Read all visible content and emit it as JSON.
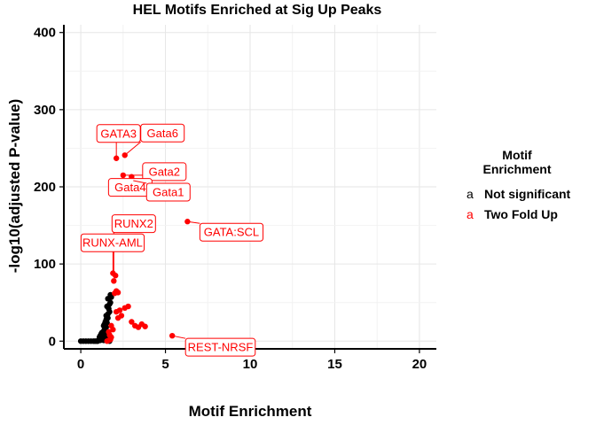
{
  "chart_data": {
    "type": "scatter",
    "title": "HEL Motifs Enriched at Sig Up Peaks",
    "xlabel": "Motif Enrichment",
    "ylabel": "-log10(adjusted P-value)",
    "xlim": [
      -1,
      21
    ],
    "ylim": [
      -10,
      410
    ],
    "xticks": [
      0,
      5,
      10,
      15,
      20
    ],
    "yticks": [
      0,
      100,
      200,
      300,
      400
    ],
    "grid": true,
    "legend": {
      "title": "Motif\nEnrichment",
      "placement": "right",
      "entries": [
        {
          "key": "a",
          "label": "Not significant",
          "color": "#000000"
        },
        {
          "key": "a",
          "label": "Two Fold Up",
          "color": "#ff0000"
        }
      ]
    },
    "series": [
      {
        "name": "Not significant",
        "color": "#000000",
        "points": [
          [
            0.0,
            0
          ],
          [
            0.15,
            0
          ],
          [
            0.3,
            0
          ],
          [
            0.45,
            0
          ],
          [
            0.6,
            0
          ],
          [
            0.75,
            0
          ],
          [
            0.85,
            0
          ],
          [
            0.95,
            0
          ],
          [
            1.0,
            0
          ],
          [
            1.05,
            1
          ],
          [
            1.1,
            2
          ],
          [
            1.15,
            1
          ],
          [
            1.2,
            3
          ],
          [
            1.25,
            2
          ],
          [
            1.3,
            4
          ],
          [
            1.35,
            1
          ],
          [
            1.4,
            3
          ],
          [
            1.45,
            5
          ],
          [
            1.5,
            2
          ],
          [
            1.55,
            4
          ],
          [
            1.6,
            1
          ],
          [
            1.65,
            3
          ],
          [
            1.7,
            0
          ],
          [
            1.1,
            5
          ],
          [
            1.15,
            7
          ],
          [
            1.2,
            9
          ],
          [
            1.25,
            11
          ],
          [
            1.3,
            8
          ],
          [
            1.35,
            13
          ],
          [
            1.4,
            15
          ],
          [
            1.45,
            10
          ],
          [
            1.5,
            18
          ],
          [
            1.55,
            12
          ],
          [
            1.35,
            20
          ],
          [
            1.4,
            22
          ],
          [
            1.45,
            25
          ],
          [
            1.5,
            28
          ],
          [
            1.55,
            24
          ],
          [
            1.6,
            30
          ],
          [
            1.5,
            33
          ],
          [
            1.6,
            35
          ],
          [
            1.7,
            38
          ],
          [
            1.65,
            42
          ],
          [
            1.55,
            45
          ],
          [
            1.7,
            48
          ],
          [
            1.75,
            50
          ],
          [
            1.6,
            55
          ],
          [
            1.8,
            57
          ],
          [
            1.75,
            60
          ]
        ]
      },
      {
        "name": "Two Fold Up",
        "color": "#ff0000",
        "points": [
          [
            1.55,
            0
          ],
          [
            1.65,
            1
          ],
          [
            1.75,
            2
          ],
          [
            1.8,
            5
          ],
          [
            1.7,
            8
          ],
          [
            1.65,
            12
          ],
          [
            1.9,
            15
          ],
          [
            1.8,
            20
          ],
          [
            2.2,
            30
          ],
          [
            2.4,
            33
          ],
          [
            2.1,
            38
          ],
          [
            2.3,
            40
          ],
          [
            2.6,
            43
          ],
          [
            2.8,
            45
          ],
          [
            3.0,
            25
          ],
          [
            3.2,
            20
          ],
          [
            3.4,
            18
          ],
          [
            3.6,
            22
          ],
          [
            3.8,
            19
          ],
          [
            2.0,
            62
          ],
          [
            2.1,
            65
          ],
          [
            2.2,
            63
          ],
          [
            1.95,
            78
          ],
          [
            2.05,
            85
          ],
          [
            1.9,
            88
          ],
          [
            5.4,
            7
          ],
          [
            6.3,
            155
          ],
          [
            2.1,
            237
          ],
          [
            2.6,
            241
          ],
          [
            2.5,
            215
          ],
          [
            3.0,
            213
          ],
          [
            3.1,
            208
          ]
        ]
      }
    ],
    "annotations": [
      {
        "label": "Gata6",
        "x": 2.6,
        "y": 241
      },
      {
        "label": "GATA3",
        "x": 2.1,
        "y": 237
      },
      {
        "label": "Gata2",
        "x": 2.5,
        "y": 215
      },
      {
        "label": "Gata4",
        "x": 3.0,
        "y": 213
      },
      {
        "label": "Gata1",
        "x": 3.1,
        "y": 208
      },
      {
        "label": "GATA:SCL",
        "x": 6.3,
        "y": 155
      },
      {
        "label": "RUNX2",
        "x": 1.95,
        "y": 88
      },
      {
        "label": "RUNX-AML",
        "x": 1.9,
        "y": 85
      },
      {
        "label": "REST-NRSF",
        "x": 5.4,
        "y": 7
      }
    ]
  }
}
